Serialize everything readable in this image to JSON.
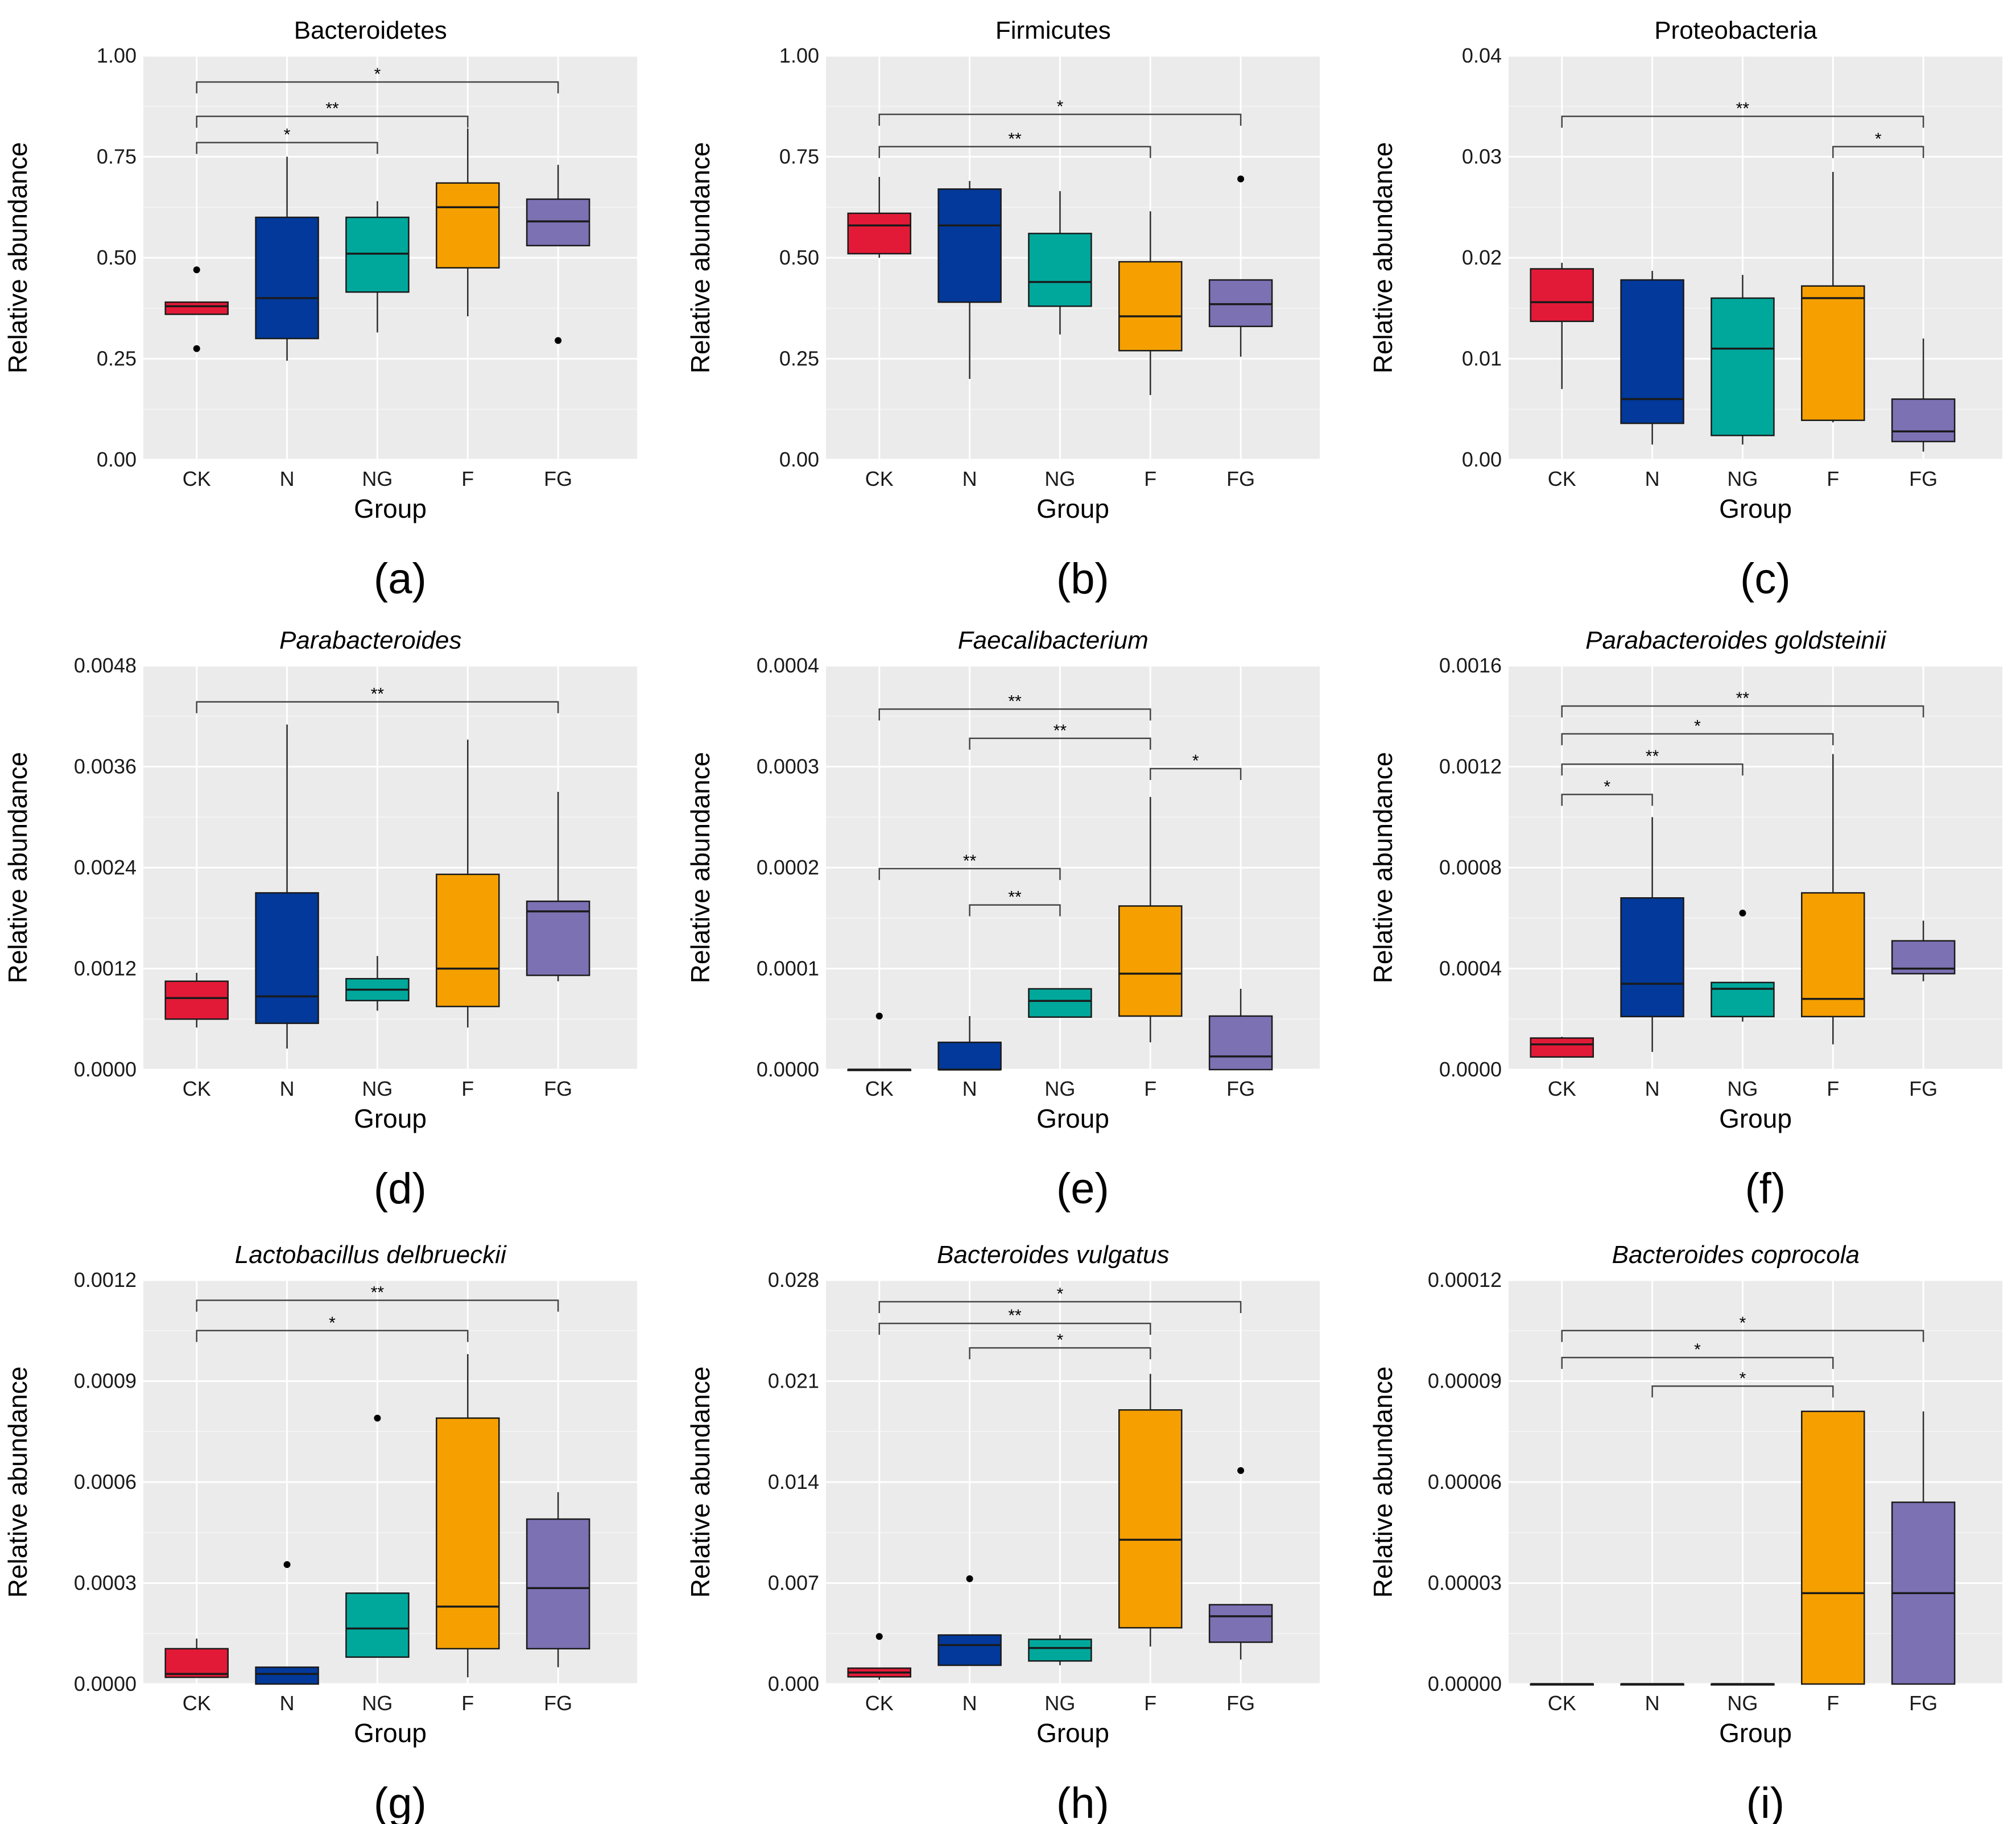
{
  "groups": [
    "CK",
    "N",
    "NG",
    "F",
    "FG"
  ],
  "group_colors": {
    "CK": "#e31a37",
    "N": "#02399a",
    "NG": "#00a89c",
    "F": "#f5a000",
    "FG": "#7b71b3"
  },
  "xlabel": "Group",
  "ylabel": "Relative abundance",
  "chart_data": [
    {
      "type": "box",
      "panel": "(a)",
      "title": "Bacteroidetes",
      "italic": false,
      "xlabel": "Group",
      "ylabel": "Relative abundance",
      "ylim": [
        0,
        1.0
      ],
      "yticks": [
        "0.00",
        "0.25",
        "0.50",
        "0.75",
        "1.00"
      ],
      "categories": [
        "CK",
        "N",
        "NG",
        "F",
        "FG"
      ],
      "boxes": [
        {
          "group": "CK",
          "min": 0.36,
          "q1": 0.36,
          "median": 0.38,
          "q3": 0.39,
          "max": 0.39,
          "outliers": [
            0.47,
            0.275
          ]
        },
        {
          "group": "N",
          "min": 0.245,
          "q1": 0.3,
          "median": 0.4,
          "q3": 0.6,
          "max": 0.75,
          "outliers": []
        },
        {
          "group": "NG",
          "min": 0.315,
          "q1": 0.415,
          "median": 0.51,
          "q3": 0.6,
          "max": 0.64,
          "outliers": []
        },
        {
          "group": "F",
          "min": 0.355,
          "q1": 0.475,
          "median": 0.625,
          "q3": 0.685,
          "max": 0.82,
          "outliers": []
        },
        {
          "group": "FG",
          "min": 0.53,
          "q1": 0.53,
          "median": 0.59,
          "q3": 0.645,
          "max": 0.73,
          "outliers": [
            0.295
          ]
        }
      ],
      "brackets": [
        {
          "from": "CK",
          "to": "FG",
          "label": "*",
          "y": 0.935
        },
        {
          "from": "CK",
          "to": "F",
          "label": "**",
          "y": 0.85
        },
        {
          "from": "CK",
          "to": "NG",
          "label": "*",
          "y": 0.785
        }
      ]
    },
    {
      "type": "box",
      "panel": "(b)",
      "title": "Firmicutes",
      "italic": false,
      "xlabel": "Group",
      "ylabel": "Relative abundance",
      "ylim": [
        0,
        1.0
      ],
      "yticks": [
        "0.00",
        "0.25",
        "0.50",
        "0.75",
        "1.00"
      ],
      "categories": [
        "CK",
        "N",
        "NG",
        "F",
        "FG"
      ],
      "boxes": [
        {
          "group": "CK",
          "min": 0.5,
          "q1": 0.51,
          "median": 0.58,
          "q3": 0.61,
          "max": 0.7,
          "outliers": []
        },
        {
          "group": "N",
          "min": 0.2,
          "q1": 0.39,
          "median": 0.58,
          "q3": 0.67,
          "max": 0.69,
          "outliers": []
        },
        {
          "group": "NG",
          "min": 0.31,
          "q1": 0.38,
          "median": 0.44,
          "q3": 0.56,
          "max": 0.665,
          "outliers": []
        },
        {
          "group": "F",
          "min": 0.16,
          "q1": 0.27,
          "median": 0.355,
          "q3": 0.49,
          "max": 0.615,
          "outliers": []
        },
        {
          "group": "FG",
          "min": 0.255,
          "q1": 0.33,
          "median": 0.385,
          "q3": 0.445,
          "max": 0.445,
          "outliers": [
            0.695
          ]
        }
      ],
      "brackets": [
        {
          "from": "CK",
          "to": "FG",
          "label": "*",
          "y": 0.855
        },
        {
          "from": "CK",
          "to": "F",
          "label": "**",
          "y": 0.775
        }
      ]
    },
    {
      "type": "box",
      "panel": "(c)",
      "title": "Proteobacteria",
      "italic": false,
      "xlabel": "Group",
      "ylabel": "Relative abundance",
      "ylim": [
        0,
        0.04
      ],
      "yticks": [
        "0.00",
        "0.01",
        "0.02",
        "0.03",
        "0.04"
      ],
      "categories": [
        "CK",
        "N",
        "NG",
        "F",
        "FG"
      ],
      "boxes": [
        {
          "group": "CK",
          "min": 0.007,
          "q1": 0.0137,
          "median": 0.0156,
          "q3": 0.0189,
          "max": 0.0195,
          "outliers": []
        },
        {
          "group": "N",
          "min": 0.0015,
          "q1": 0.0036,
          "median": 0.006,
          "q3": 0.0178,
          "max": 0.0187,
          "outliers": []
        },
        {
          "group": "NG",
          "min": 0.0015,
          "q1": 0.0024,
          "median": 0.011,
          "q3": 0.016,
          "max": 0.0183,
          "outliers": []
        },
        {
          "group": "F",
          "min": 0.0037,
          "q1": 0.0039,
          "median": 0.016,
          "q3": 0.0172,
          "max": 0.0285,
          "outliers": []
        },
        {
          "group": "FG",
          "min": 0.0008,
          "q1": 0.0018,
          "median": 0.0028,
          "q3": 0.006,
          "max": 0.012,
          "outliers": []
        }
      ],
      "brackets": [
        {
          "from": "CK",
          "to": "FG",
          "label": "**",
          "y": 0.034
        },
        {
          "from": "F",
          "to": "FG",
          "label": "*",
          "y": 0.031
        }
      ]
    },
    {
      "type": "box",
      "panel": "(d)",
      "title": "Parabacteroides",
      "italic": true,
      "xlabel": "Group",
      "ylabel": "Relative abundance",
      "ylim": [
        0,
        0.0048
      ],
      "yticks": [
        "0.0000",
        "0.0012",
        "0.0024",
        "0.0036",
        "0.0048"
      ],
      "categories": [
        "CK",
        "N",
        "NG",
        "F",
        "FG"
      ],
      "boxes": [
        {
          "group": "CK",
          "min": 0.0005,
          "q1": 0.0006,
          "median": 0.00085,
          "q3": 0.00105,
          "max": 0.00115,
          "outliers": []
        },
        {
          "group": "N",
          "min": 0.00025,
          "q1": 0.00055,
          "median": 0.00087,
          "q3": 0.0021,
          "max": 0.0041,
          "outliers": []
        },
        {
          "group": "NG",
          "min": 0.0007,
          "q1": 0.00082,
          "median": 0.00095,
          "q3": 0.00108,
          "max": 0.00135,
          "outliers": []
        },
        {
          "group": "F",
          "min": 0.0005,
          "q1": 0.00075,
          "median": 0.0012,
          "q3": 0.00232,
          "max": 0.00392,
          "outliers": []
        },
        {
          "group": "FG",
          "min": 0.00105,
          "q1": 0.00112,
          "median": 0.00188,
          "q3": 0.002,
          "max": 0.0033,
          "outliers": []
        }
      ],
      "brackets": [
        {
          "from": "CK",
          "to": "FG",
          "label": "**",
          "y": 0.00437
        }
      ]
    },
    {
      "type": "box",
      "panel": "(e)",
      "title": "Faecalibacterium",
      "italic": true,
      "xlabel": "Group",
      "ylabel": "Relative abundance",
      "ylim": [
        0,
        0.0004
      ],
      "yticks": [
        "0.0000",
        "0.0001",
        "0.0002",
        "0.0003",
        "0.0004"
      ],
      "categories": [
        "CK",
        "N",
        "NG",
        "F",
        "FG"
      ],
      "boxes": [
        {
          "group": "CK",
          "min": 0,
          "q1": 0,
          "median": 0,
          "q3": 0,
          "max": 0,
          "outliers": [
            5.3e-05
          ]
        },
        {
          "group": "N",
          "min": 0,
          "q1": 0,
          "median": 0,
          "q3": 2.7e-05,
          "max": 5.3e-05,
          "outliers": []
        },
        {
          "group": "NG",
          "min": 5.2e-05,
          "q1": 5.2e-05,
          "median": 6.8e-05,
          "q3": 8e-05,
          "max": 8e-05,
          "outliers": []
        },
        {
          "group": "F",
          "min": 2.7e-05,
          "q1": 5.3e-05,
          "median": 9.5e-05,
          "q3": 0.000162,
          "max": 0.00027,
          "outliers": []
        },
        {
          "group": "FG",
          "min": 0,
          "q1": 0,
          "median": 1.3e-05,
          "q3": 5.3e-05,
          "max": 8e-05,
          "outliers": []
        }
      ],
      "brackets": [
        {
          "from": "CK",
          "to": "F",
          "label": "**",
          "y": 0.000357
        },
        {
          "from": "N",
          "to": "F",
          "label": "**",
          "y": 0.000328
        },
        {
          "from": "F",
          "to": "FG",
          "label": "*",
          "y": 0.000298
        },
        {
          "from": "CK",
          "to": "NG",
          "label": "**",
          "y": 0.000199
        },
        {
          "from": "N",
          "to": "NG",
          "label": "**",
          "y": 0.000163
        }
      ]
    },
    {
      "type": "box",
      "panel": "(f)",
      "title": "Parabacteroides goldsteinii",
      "italic": true,
      "xlabel": "Group",
      "ylabel": "Relative abundance",
      "ylim": [
        0,
        0.0016
      ],
      "yticks": [
        "0.0000",
        "0.0004",
        "0.0008",
        "0.0012",
        "0.0016"
      ],
      "categories": [
        "CK",
        "N",
        "NG",
        "F",
        "FG"
      ],
      "boxes": [
        {
          "group": "CK",
          "min": 5e-05,
          "q1": 5e-05,
          "median": 0.0001,
          "q3": 0.000125,
          "max": 0.00013,
          "outliers": []
        },
        {
          "group": "N",
          "min": 7e-05,
          "q1": 0.00021,
          "median": 0.00034,
          "q3": 0.00068,
          "max": 0.001,
          "outliers": []
        },
        {
          "group": "NG",
          "min": 0.00019,
          "q1": 0.00021,
          "median": 0.00032,
          "q3": 0.000345,
          "max": 0.000345,
          "outliers": [
            0.00062
          ]
        },
        {
          "group": "F",
          "min": 0.0001,
          "q1": 0.00021,
          "median": 0.00028,
          "q3": 0.0007,
          "max": 0.00125,
          "outliers": []
        },
        {
          "group": "FG",
          "min": 0.00035,
          "q1": 0.00038,
          "median": 0.0004,
          "q3": 0.00051,
          "max": 0.00059,
          "outliers": []
        }
      ],
      "brackets": [
        {
          "from": "CK",
          "to": "FG",
          "label": "**",
          "y": 0.00144
        },
        {
          "from": "CK",
          "to": "F",
          "label": "*",
          "y": 0.00133
        },
        {
          "from": "CK",
          "to": "NG",
          "label": "**",
          "y": 0.00121
        },
        {
          "from": "CK",
          "to": "N",
          "label": "*",
          "y": 0.00109
        }
      ]
    },
    {
      "type": "box",
      "panel": "(g)",
      "title": "Lactobacillus delbrueckii",
      "italic": true,
      "xlabel": "Group",
      "ylabel": "Relative abundance",
      "ylim": [
        0,
        0.0012
      ],
      "yticks": [
        "0.0000",
        "0.0003",
        "0.0006",
        "0.0009",
        "0.0012"
      ],
      "categories": [
        "CK",
        "N",
        "NG",
        "F",
        "FG"
      ],
      "boxes": [
        {
          "group": "CK",
          "min": 2e-05,
          "q1": 2e-05,
          "median": 3e-05,
          "q3": 0.000105,
          "max": 0.000135,
          "outliers": []
        },
        {
          "group": "N",
          "min": 0,
          "q1": 0,
          "median": 3e-05,
          "q3": 5e-05,
          "max": 5e-05,
          "outliers": [
            0.000355
          ]
        },
        {
          "group": "NG",
          "min": 8e-05,
          "q1": 8e-05,
          "median": 0.000165,
          "q3": 0.00027,
          "max": 0.00027,
          "outliers": [
            0.00079
          ]
        },
        {
          "group": "F",
          "min": 2e-05,
          "q1": 0.000105,
          "median": 0.00023,
          "q3": 0.00079,
          "max": 0.00098,
          "outliers": []
        },
        {
          "group": "FG",
          "min": 5e-05,
          "q1": 0.000105,
          "median": 0.000285,
          "q3": 0.00049,
          "max": 0.00057,
          "outliers": []
        }
      ],
      "brackets": [
        {
          "from": "CK",
          "to": "FG",
          "label": "**",
          "y": 0.00114
        },
        {
          "from": "CK",
          "to": "F",
          "label": "*",
          "y": 0.00105
        }
      ]
    },
    {
      "type": "box",
      "panel": "(h)",
      "title": "Bacteroides vulgatus",
      "italic": true,
      "xlabel": "Group",
      "ylabel": "Relative abundance",
      "ylim": [
        0,
        0.028
      ],
      "yticks": [
        "0.000",
        "0.007",
        "0.014",
        "0.021",
        "0.028"
      ],
      "categories": [
        "CK",
        "N",
        "NG",
        "F",
        "FG"
      ],
      "boxes": [
        {
          "group": "CK",
          "min": 0.0003,
          "q1": 0.0005,
          "median": 0.0008,
          "q3": 0.0011,
          "max": 0.0011,
          "outliers": [
            0.0033
          ]
        },
        {
          "group": "N",
          "min": 0.0013,
          "q1": 0.0013,
          "median": 0.0027,
          "q3": 0.0034,
          "max": 0.0034,
          "outliers": [
            0.0073
          ]
        },
        {
          "group": "NG",
          "min": 0.0013,
          "q1": 0.0016,
          "median": 0.0025,
          "q3": 0.0031,
          "max": 0.0034,
          "outliers": []
        },
        {
          "group": "F",
          "min": 0.0026,
          "q1": 0.0039,
          "median": 0.01,
          "q3": 0.019,
          "max": 0.0215,
          "outliers": []
        },
        {
          "group": "FG",
          "min": 0.0017,
          "q1": 0.0029,
          "median": 0.0047,
          "q3": 0.0055,
          "max": 0.0055,
          "outliers": [
            0.0148
          ]
        }
      ],
      "brackets": [
        {
          "from": "CK",
          "to": "FG",
          "label": "*",
          "y": 0.0265
        },
        {
          "from": "CK",
          "to": "F",
          "label": "**",
          "y": 0.025
        },
        {
          "from": "N",
          "to": "F",
          "label": "*",
          "y": 0.0233
        }
      ]
    },
    {
      "type": "box",
      "panel": "(i)",
      "title": "Bacteroides coprocola",
      "italic": true,
      "xlabel": "Group",
      "ylabel": "Relative abundance",
      "ylim": [
        0,
        0.00012
      ],
      "yticks": [
        "0.00000",
        "0.00003",
        "0.00006",
        "0.00009",
        "0.00012"
      ],
      "categories": [
        "CK",
        "N",
        "NG",
        "F",
        "FG"
      ],
      "boxes": [
        {
          "group": "CK",
          "min": 0,
          "q1": 0,
          "median": 0,
          "q3": 0,
          "max": 0,
          "outliers": []
        },
        {
          "group": "N",
          "min": 0,
          "q1": 0,
          "median": 0,
          "q3": 0,
          "max": 0,
          "outliers": []
        },
        {
          "group": "NG",
          "min": 0,
          "q1": 0,
          "median": 0,
          "q3": 0,
          "max": 0,
          "outliers": []
        },
        {
          "group": "F",
          "min": 0,
          "q1": 0,
          "median": 2.7e-05,
          "q3": 8.1e-05,
          "max": 8.1e-05,
          "outliers": []
        },
        {
          "group": "FG",
          "min": 0,
          "q1": 0,
          "median": 2.7e-05,
          "q3": 5.4e-05,
          "max": 8.1e-05,
          "outliers": []
        }
      ],
      "brackets": [
        {
          "from": "CK",
          "to": "FG",
          "label": "*",
          "y": 0.000105
        },
        {
          "from": "CK",
          "to": "F",
          "label": "*",
          "y": 9.7e-05
        },
        {
          "from": "N",
          "to": "F",
          "label": "*",
          "y": 8.85e-05
        }
      ]
    }
  ]
}
